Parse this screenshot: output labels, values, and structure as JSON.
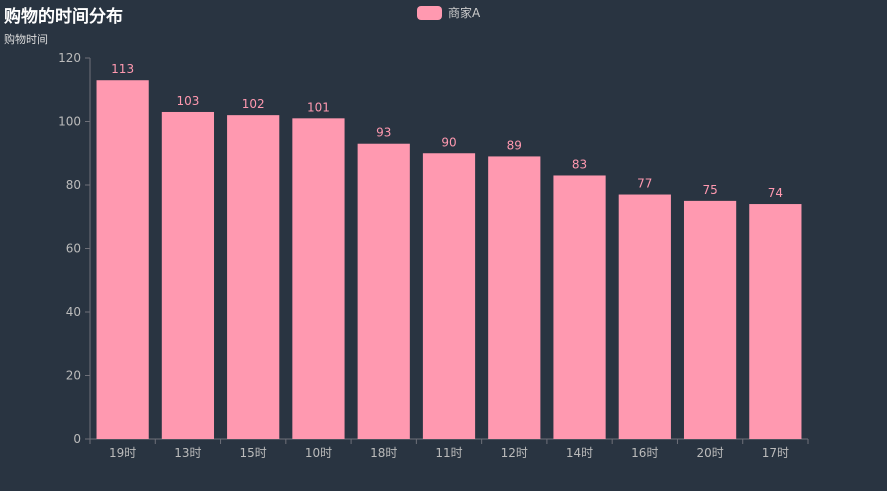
{
  "title": "购物的时间分布",
  "subtitle": "购物时间",
  "legend": {
    "label": "商家A"
  },
  "colors": {
    "bar": "#ff99b0",
    "label": "#ff99b0",
    "axis": "#6e7079",
    "tick_text": "#bbbbbb",
    "background": "#293441"
  },
  "chart_data": {
    "type": "bar",
    "categories": [
      "19时",
      "13时",
      "15时",
      "10时",
      "18时",
      "11时",
      "12时",
      "14时",
      "16时",
      "20时",
      "17时"
    ],
    "series": [
      {
        "name": "商家A",
        "values": [
          113,
          103,
          102,
          101,
          93,
          90,
          89,
          83,
          77,
          75,
          74
        ]
      }
    ],
    "ylim": [
      0,
      120
    ],
    "yticks": [
      0,
      20,
      40,
      60,
      80,
      100,
      120
    ],
    "grid": false,
    "legend_position": "top-center",
    "data_labels": true
  }
}
